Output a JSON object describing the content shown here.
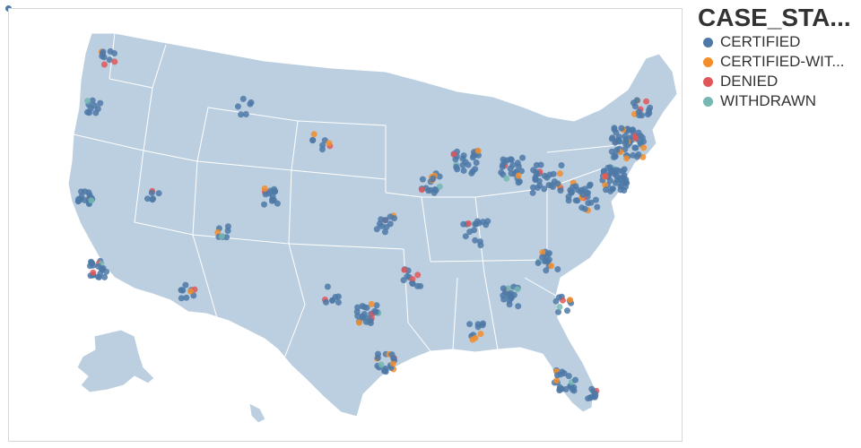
{
  "legend": {
    "title": "CASE_STA...",
    "items": [
      {
        "label": "CERTIFIED",
        "color": "#4e79a7"
      },
      {
        "label": "CERTIFIED-WIT...",
        "color": "#f28e2b"
      },
      {
        "label": "DENIED",
        "color": "#e15759"
      },
      {
        "label": "WITHDRAWN",
        "color": "#76b7b2"
      }
    ]
  },
  "map": {
    "region": "United States",
    "land_color": "#bccfe0",
    "border_color": "#ffffff"
  }
}
